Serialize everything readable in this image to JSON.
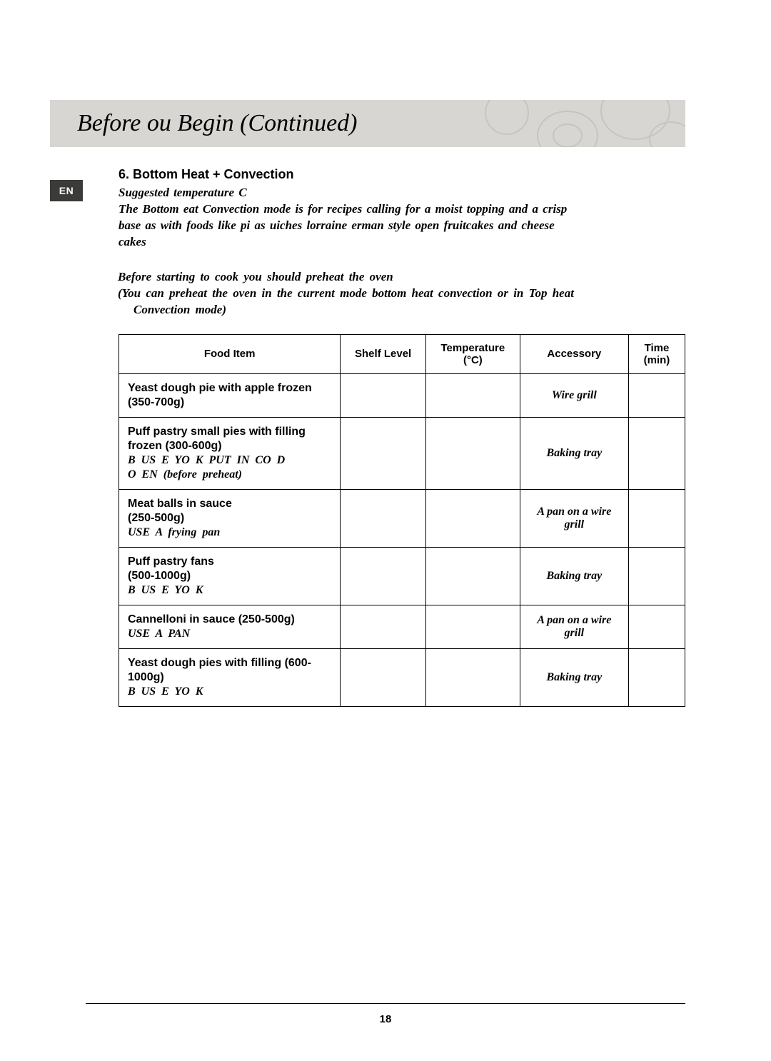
{
  "title": "Before    ou Begin (Continued)",
  "lang_tab": "EN",
  "section_heading": "6. Bottom Heat + Convection",
  "subhead": {
    "line1": "Suggested temperature                         C",
    "line2": "The Bottom    eat     Convection mode is for recipes calling for a moist topping and a crisp",
    "line3": "base    as with foods like pi       as          uiches lorraine         erman   style open fruitcakes and cheese",
    "line4": "cakes"
  },
  "preheat": {
    "line1": "Before starting to cook you should preheat the oven",
    "line2": "(You can preheat the oven in the current mode        bottom   heat   convection       or in   Top   heat",
    "line3": "Convection    mode)"
  },
  "table": {
    "headers": {
      "food": "Food Item",
      "shelf": "Shelf Level",
      "temp": "Temperature (°C)",
      "acc": "Accessory",
      "time": "Time (min)"
    },
    "rows": [
      {
        "main": "Yeast dough pie with apple frozen\n(350-700g)",
        "note": "",
        "shelf": "",
        "acc": "Wire grill"
      },
      {
        "main": "Puff pastry small pies with filling frozen (300-600g)",
        "note": "B   US   E       YO   K    PUT IN CO  D\nO   EN (before preheat)",
        "shelf": "",
        "acc": "Baking tray"
      },
      {
        "main": "Meat balls in sauce\n(250-500g)",
        "note": "USE A frying pan",
        "shelf": "",
        "acc": "A pan on a wire grill"
      },
      {
        "main": "Puff pastry fans\n(500-1000g)",
        "note": "B   US   E       YO   K",
        "shelf": "",
        "acc": "Baking tray"
      },
      {
        "main": "Cannelloni in sauce (250-500g)",
        "note": "USE A PAN",
        "shelf": "",
        "acc": "A pan on a wire grill"
      },
      {
        "main": "Yeast dough pies with filling (600-1000g)",
        "note": "B   US   E       YO   K",
        "shelf": "",
        "acc": "Baking tray"
      }
    ]
  },
  "page_number": "18",
  "decor": {
    "title_bg": "#d8d6d3",
    "tab_bg": "#3b3b3a",
    "border": "#000000"
  }
}
